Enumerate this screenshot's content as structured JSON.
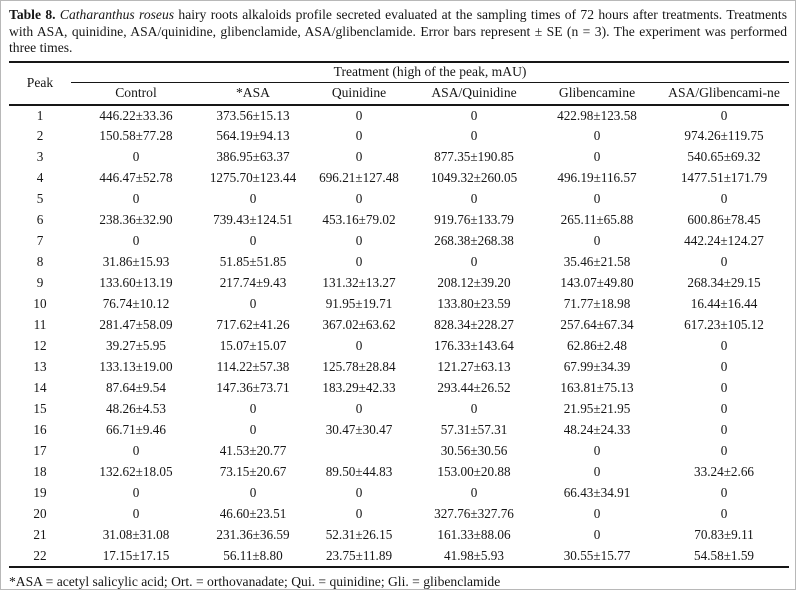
{
  "caption": {
    "label": "Table 8.",
    "species": "Catharanthus roseus",
    "text": "hairy roots alkaloids profile secreted evaluated at the sampling times of 72 hours after treatments. Treatments with ASA, quinidine, ASA/quinidine, glibenclamide, ASA/glibenclamide. Error bars represent ± SE (n = 3). The experiment was performed three times."
  },
  "table": {
    "peak_header": "Peak",
    "treatment_header": "Treatment (high of the peak, mAU)",
    "columns": [
      "Control",
      "*ASA",
      "Quinidine",
      "ASA/Quinidine",
      "Glibencamine",
      "ASA/Glibencami-ne"
    ],
    "rows": [
      {
        "peak": "1",
        "values": [
          "446.22±33.36",
          "373.56±15.13",
          "0",
          "0",
          "422.98±123.58",
          "0"
        ]
      },
      {
        "peak": "2",
        "values": [
          "150.58±77.28",
          "564.19±94.13",
          "0",
          "0",
          "0",
          "974.26±119.75"
        ]
      },
      {
        "peak": "3",
        "values": [
          "0",
          "386.95±63.37",
          "0",
          "877.35±190.85",
          "0",
          "540.65±69.32"
        ]
      },
      {
        "peak": "4",
        "values": [
          "446.47±52.78",
          "1275.70±123.44",
          "696.21±127.48",
          "1049.32±260.05",
          "496.19±116.57",
          "1477.51±171.79"
        ]
      },
      {
        "peak": "5",
        "values": [
          "0",
          "0",
          "0",
          "0",
          "0",
          "0"
        ]
      },
      {
        "peak": "6",
        "values": [
          "238.36±32.90",
          "739.43±124.51",
          "453.16±79.02",
          "919.76±133.79",
          "265.11±65.88",
          "600.86±78.45"
        ]
      },
      {
        "peak": "7",
        "values": [
          "0",
          "0",
          "0",
          "268.38±268.38",
          "0",
          "442.24±124.27"
        ]
      },
      {
        "peak": "8",
        "values": [
          "31.86±15.93",
          "51.85±51.85",
          "0",
          "0",
          "35.46±21.58",
          "0"
        ]
      },
      {
        "peak": "9",
        "values": [
          "133.60±13.19",
          "217.74±9.43",
          "131.32±13.27",
          "208.12±39.20",
          "143.07±49.80",
          "268.34±29.15"
        ]
      },
      {
        "peak": "10",
        "values": [
          "76.74±10.12",
          "0",
          "91.95±19.71",
          "133.80±23.59",
          "71.77±18.98",
          "16.44±16.44"
        ]
      },
      {
        "peak": "11",
        "values": [
          "281.47±58.09",
          "717.62±41.26",
          "367.02±63.62",
          "828.34±228.27",
          "257.64±67.34",
          "617.23±105.12"
        ]
      },
      {
        "peak": "12",
        "values": [
          "39.27±5.95",
          "15.07±15.07",
          "0",
          "176.33±143.64",
          "62.86±2.48",
          "0"
        ]
      },
      {
        "peak": "13",
        "values": [
          "133.13±19.00",
          "114.22±57.38",
          "125.78±28.84",
          "121.27±63.13",
          "67.99±34.39",
          "0"
        ]
      },
      {
        "peak": "14",
        "values": [
          "87.64±9.54",
          "147.36±73.71",
          "183.29±42.33",
          "293.44±26.52",
          "163.81±75.13",
          "0"
        ]
      },
      {
        "peak": "15",
        "values": [
          "48.26±4.53",
          "0",
          "0",
          "0",
          "21.95±21.95",
          "0"
        ]
      },
      {
        "peak": "16",
        "values": [
          "66.71±9.46",
          "0",
          "30.47±30.47",
          "57.31±57.31",
          "48.24±24.33",
          "0"
        ]
      },
      {
        "peak": "17",
        "values": [
          "0",
          "41.53±20.77",
          "",
          "30.56±30.56",
          "0",
          "0"
        ]
      },
      {
        "peak": "18",
        "values": [
          "132.62±18.05",
          "73.15±20.67",
          "89.50±44.83",
          "153.00±20.88",
          "0",
          "33.24±2.66"
        ]
      },
      {
        "peak": "19",
        "values": [
          "0",
          "0",
          "0",
          "0",
          "66.43±34.91",
          "0"
        ]
      },
      {
        "peak": "20",
        "values": [
          "0",
          "46.60±23.51",
          "0",
          "327.76±327.76",
          "0",
          "0"
        ]
      },
      {
        "peak": "21",
        "values": [
          "31.08±31.08",
          "231.36±36.59",
          "52.31±26.15",
          "161.33±88.06",
          "0",
          "70.83±9.11"
        ]
      },
      {
        "peak": "22",
        "values": [
          "17.15±17.15",
          "56.11±8.80",
          "23.75±11.89",
          "41.98±5.93",
          "30.55±15.77",
          "54.58±1.59"
        ]
      }
    ]
  },
  "footnote": "*ASA = acetyl salicylic acid; Ort. = orthovanadate; Qui. = quinidine; Gli. = glibenclamide"
}
